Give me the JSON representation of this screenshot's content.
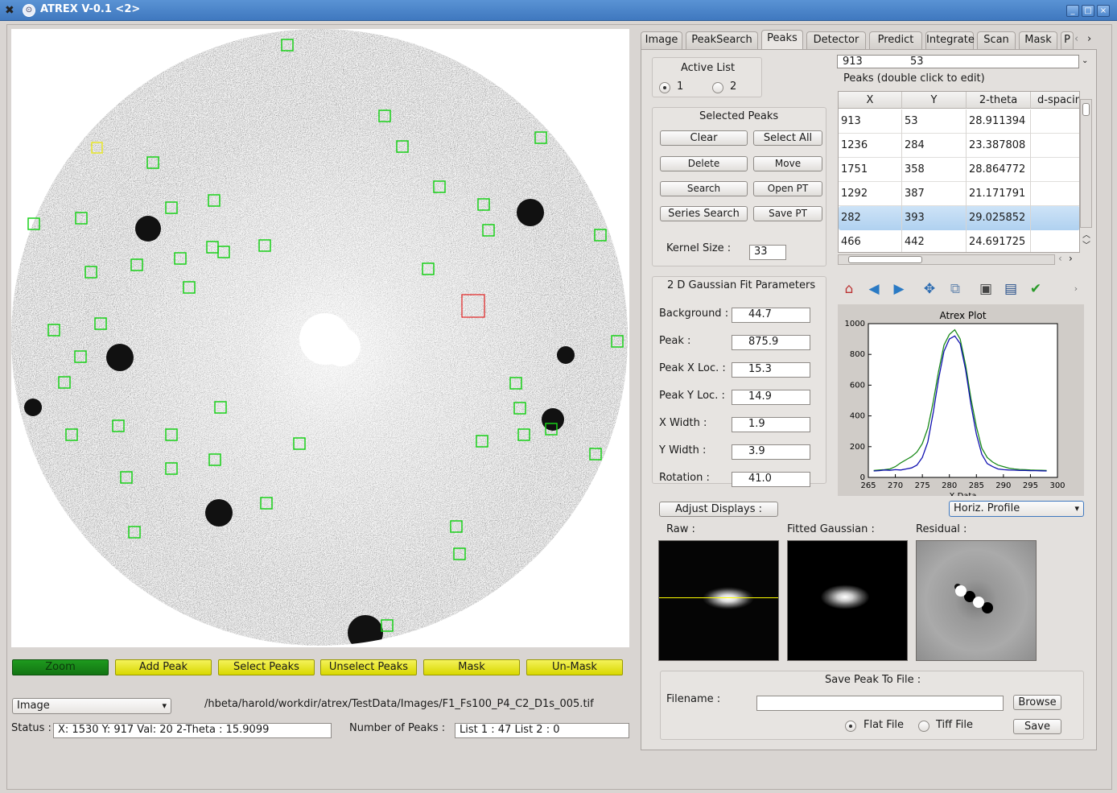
{
  "window": {
    "title": "ATREX V-0.1 <2>",
    "controls": [
      "_",
      "□",
      "×"
    ]
  },
  "image_panel": {
    "peak_count_visible": 47
  },
  "bottom_buttons": {
    "zoom": "Zoom",
    "add_peak": "Add Peak",
    "select_peaks": "Select Peaks",
    "unselect_peaks": "Unselect Peaks",
    "mask": "Mask",
    "unmask": "Un-Mask"
  },
  "display_select": {
    "value": "Image"
  },
  "file_path": "/hbeta/harold/workdir/atrex/TestData/Images/F1_Fs100_P4_C2_D1s_005.tif",
  "status": {
    "label": "Status :",
    "value": "X: 1530   Y: 917   Val:  20     2-Theta : 15.9099"
  },
  "num_peaks": {
    "label": "Number of Peaks :",
    "value": "List 1 : 47     List 2 : 0"
  },
  "tabs": [
    "Image",
    "PeakSearch",
    "Peaks",
    "Detector",
    "Predict",
    "Integrate",
    "Scan",
    "Mask",
    "P"
  ],
  "active_tab": "Peaks",
  "active_list": {
    "title": "Active List",
    "options": [
      "1",
      "2"
    ],
    "selected": "1"
  },
  "selected_peaks": {
    "title": "Selected Peaks",
    "clear": "Clear",
    "select_all": "Select All",
    "delete": "Delete",
    "move": "Move",
    "search": "Search",
    "open_pt": "Open PT",
    "series_search": "Series Search",
    "save_pt": "Save PT"
  },
  "kernel": {
    "label": "Kernel Size :",
    "value": "33"
  },
  "edit_line": {
    "x": "913",
    "y": "53"
  },
  "peaks_label": "Peaks  (double click to edit)",
  "table": {
    "headers": [
      "X",
      "Y",
      "2-theta",
      "d-spacin"
    ],
    "rows": [
      [
        "913",
        "53",
        "28.911394",
        ""
      ],
      [
        "1236",
        "284",
        "23.387808",
        ""
      ],
      [
        "1751",
        "358",
        "28.864772",
        ""
      ],
      [
        "1292",
        "387",
        "21.171791",
        ""
      ],
      [
        "282",
        "393",
        "29.025852",
        ""
      ],
      [
        "466",
        "442",
        "24.691725",
        ""
      ]
    ],
    "selected_row": 4
  },
  "gauss": {
    "title": "2 D Gaussian Fit Parameters",
    "params": [
      {
        "label": "Background :",
        "value": "44.7"
      },
      {
        "label": "Peak :",
        "value": "875.9"
      },
      {
        "label": "Peak X Loc. :",
        "value": "15.3"
      },
      {
        "label": "Peak Y Loc. :",
        "value": "14.9"
      },
      {
        "label": "X Width :",
        "value": "1.9"
      },
      {
        "label": "Y Width :",
        "value": "3.9"
      },
      {
        "label": "Rotation :",
        "value": "41.0"
      }
    ]
  },
  "toolbar_icons": [
    "home-icon",
    "back-icon",
    "forward-icon",
    "pan-icon",
    "zoom-icon",
    "configure-icon",
    "save-icon",
    "check-icon"
  ],
  "chart_data": {
    "type": "line",
    "title": "Atrex Plot",
    "xlabel": "X Data",
    "ylabel": "",
    "xlim": [
      265,
      300
    ],
    "ylim": [
      0,
      1000
    ],
    "xticks": [
      "265",
      "270",
      "275",
      "280",
      "285",
      "290",
      "295",
      "300"
    ],
    "yticks": [
      "0",
      "200",
      "400",
      "600",
      "800",
      "1000"
    ],
    "series": [
      {
        "color": "#1a8a1a",
        "x": [
          266,
          267,
          268,
          269,
          270,
          271,
          272,
          273,
          274,
          275,
          276,
          277,
          278,
          279,
          280,
          281,
          282,
          283,
          284,
          285,
          286,
          287,
          288,
          289,
          290,
          291,
          292,
          293,
          294,
          295,
          296,
          297,
          298
        ],
        "y": [
          45,
          48,
          50,
          55,
          70,
          95,
          115,
          135,
          165,
          220,
          320,
          490,
          690,
          860,
          930,
          960,
          900,
          730,
          510,
          330,
          190,
          130,
          100,
          80,
          70,
          60,
          55,
          52,
          50,
          48,
          47,
          46,
          45
        ]
      },
      {
        "color": "#1010b0",
        "x": [
          266,
          267,
          268,
          269,
          270,
          271,
          272,
          273,
          274,
          275,
          276,
          277,
          278,
          279,
          280,
          281,
          282,
          283,
          284,
          285,
          286,
          287,
          288,
          289,
          290,
          291,
          292,
          293,
          294,
          295,
          296,
          297,
          298
        ],
        "y": [
          42,
          44,
          48,
          46,
          50,
          48,
          55,
          62,
          80,
          130,
          230,
          420,
          640,
          820,
          900,
          920,
          870,
          700,
          470,
          280,
          150,
          90,
          70,
          55,
          50,
          48,
          47,
          45,
          45,
          44,
          44,
          43,
          42
        ]
      }
    ]
  },
  "adjust_displays": "Adjust Displays :",
  "profile_select": {
    "value": "Horiz. Profile"
  },
  "thumbs": {
    "raw": "Raw :",
    "fitted": "Fitted Gaussian :",
    "residual": "Residual :"
  },
  "save_peak": {
    "title": "Save Peak To File :",
    "filename_label": "Filename :",
    "browse": "Browse",
    "flat": "Flat File",
    "tiff": "Tiff File",
    "save": "Save",
    "selected": "Flat File"
  },
  "colors": {
    "zoom_green": "#1a8a1a",
    "mask_yellow": "#e8e72a",
    "selection": "#b0d1f0"
  }
}
